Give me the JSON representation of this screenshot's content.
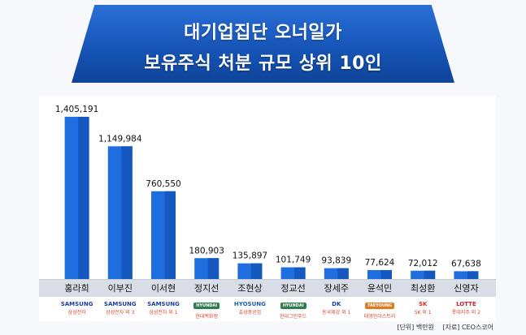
{
  "title": {
    "line1": "대기업집단 오너일가",
    "line2": "보유주식 처분 규모 상위 10인"
  },
  "chart_data": {
    "type": "bar",
    "title": "대기업집단 오너일가 보유주식 처분 규모 상위 10인",
    "categories": [
      "홍라희",
      "이부진",
      "이서현",
      "정지선",
      "조현상",
      "정교선",
      "장세주",
      "윤석민",
      "최성환",
      "신영자"
    ],
    "values": [
      1405191,
      1149984,
      760550,
      180903,
      135897,
      101749,
      93839,
      77624,
      72012,
      67638
    ],
    "value_labels": [
      "1,405,191",
      "1,149,984",
      "760,550",
      "180,903",
      "135,897",
      "101,749",
      "93,839",
      "77,624",
      "72,012",
      "67,638"
    ],
    "ylim": [
      0,
      1560000
    ],
    "grid": false,
    "legend": "none",
    "colors": {
      "bar": "#1f6ee0",
      "bar_dark": "#1558bf"
    }
  },
  "companies": [
    {
      "logo": "SAMSUNG",
      "caption": "삼성전자",
      "icon": "samsung-logo",
      "color": "#1b3fa0"
    },
    {
      "logo": "SAMSUNG",
      "caption": "삼성전자 외 3",
      "icon": "samsung-logo",
      "color": "#1b3fa0"
    },
    {
      "logo": "SAMSUNG",
      "caption": "삼성전자 외 1",
      "icon": "samsung-logo",
      "color": "#1b3fa0"
    },
    {
      "logo": "HYUNDAI",
      "caption": "현대백화점",
      "icon": "hyundai-logo",
      "color": "#2f7d4f"
    },
    {
      "logo": "HYOSUNG",
      "caption": "효성중공업",
      "icon": "hyosung-logo",
      "color": "#1b5fb0"
    },
    {
      "logo": "HYUNDAI",
      "caption": "현대그린푸드",
      "icon": "hyundai-logo",
      "color": "#2f7d4f"
    },
    {
      "logo": "DK",
      "caption": "동국제강 외 1",
      "icon": "dongkuk-logo",
      "color": "#1b3fa0"
    },
    {
      "logo": "TAEYOUNG",
      "caption": "태영인더스트리",
      "icon": "taeyoung-logo",
      "color": "#e07a1f"
    },
    {
      "logo": "SK",
      "caption": "SK 외 1",
      "icon": "sk-logo",
      "color": "#e0301e"
    },
    {
      "logo": "LOTTE",
      "caption": "롯데지주 외 2",
      "icon": "lotte-logo",
      "color": "#d0202a"
    }
  ],
  "footer": {
    "unit": "[단위] 백만원",
    "source": "[자료] CEO스코어"
  }
}
